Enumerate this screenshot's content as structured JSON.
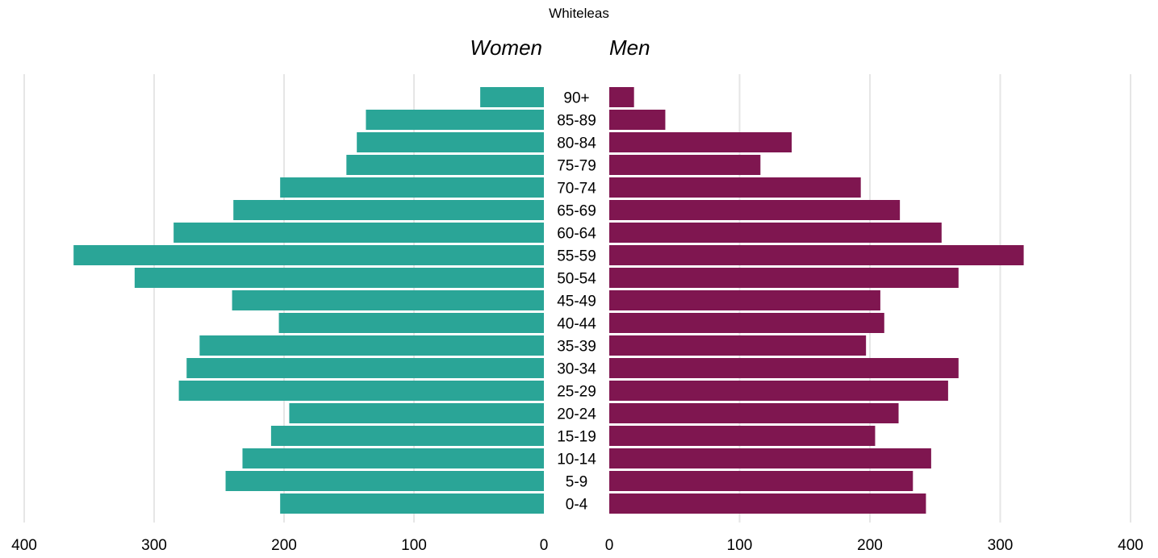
{
  "title": "Whiteleas",
  "labels": {
    "women": "Women",
    "men": "Men"
  },
  "colors": {
    "women": "#2aa597",
    "men": "#7f1650",
    "grid": "#e6e6e6"
  },
  "chart_data": {
    "type": "bar",
    "orientation": "horizontal",
    "variant": "population-pyramid",
    "title": "Whiteleas",
    "categories": [
      "90+",
      "85-89",
      "80-84",
      "75-79",
      "70-74",
      "65-69",
      "60-64",
      "55-59",
      "50-54",
      "45-49",
      "40-44",
      "35-39",
      "30-34",
      "25-29",
      "20-24",
      "15-19",
      "10-14",
      "5-9",
      "0-4"
    ],
    "series": [
      {
        "name": "Women",
        "values": [
          49,
          137,
          144,
          152,
          203,
          239,
          285,
          362,
          315,
          240,
          204,
          265,
          275,
          281,
          196,
          210,
          232,
          245,
          203
        ]
      },
      {
        "name": "Men",
        "values": [
          19,
          43,
          140,
          116,
          193,
          223,
          255,
          318,
          268,
          208,
          211,
          197,
          268,
          260,
          222,
          204,
          247,
          233,
          243
        ]
      }
    ],
    "xlim": [
      0,
      400
    ],
    "ticks": [
      "400",
      "300",
      "200",
      "100",
      "0",
      "0",
      "100",
      "200",
      "300",
      "400"
    ],
    "grid": true
  }
}
